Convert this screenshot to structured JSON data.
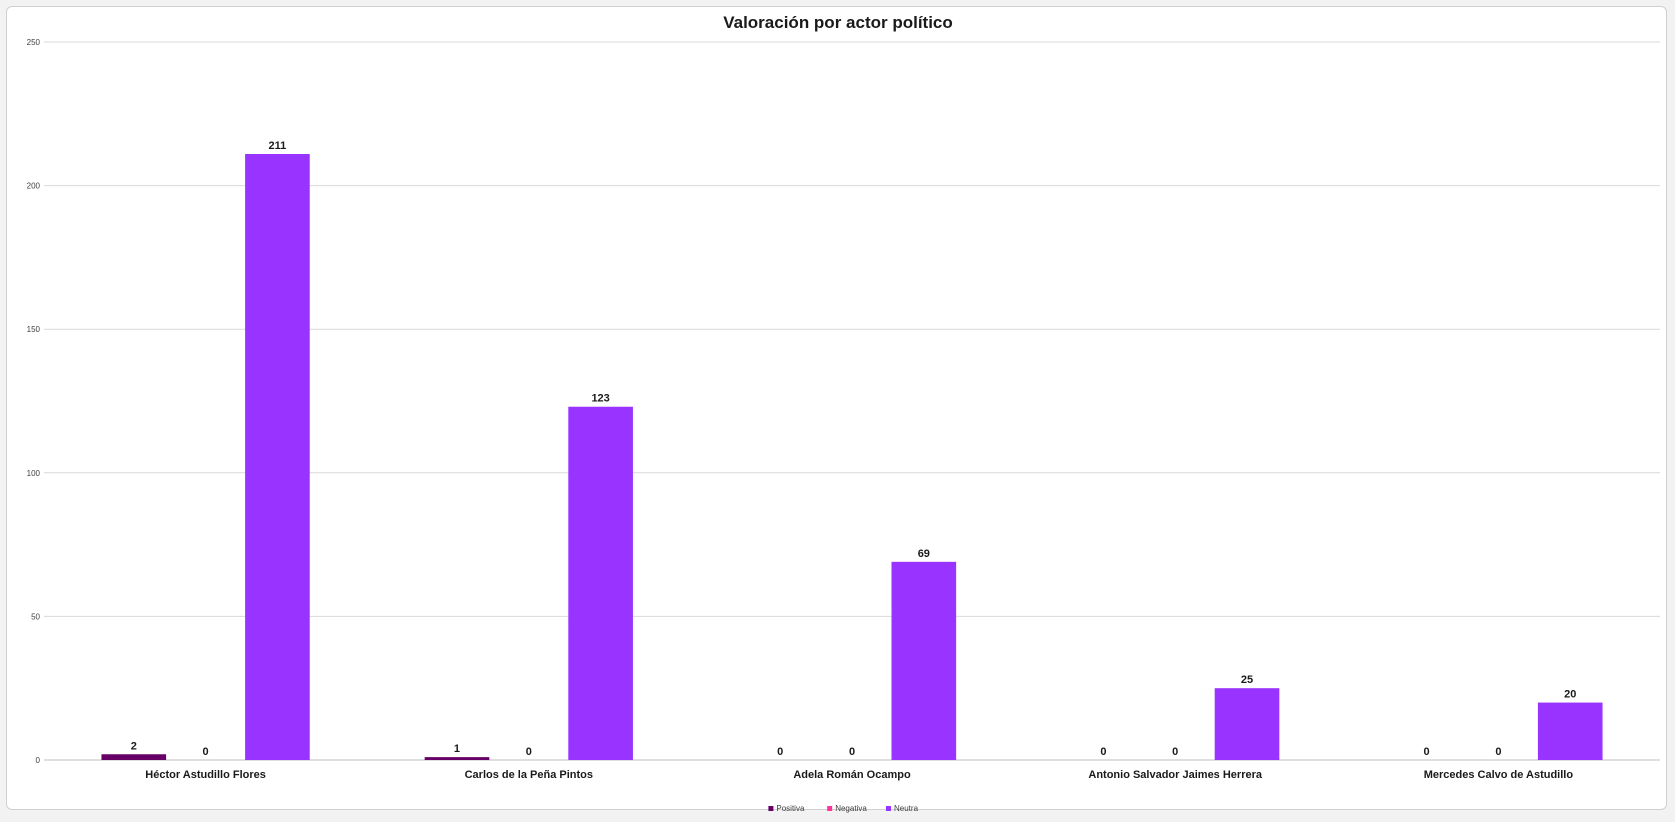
{
  "chart_data": {
    "type": "bar",
    "title": "Valoración por actor político",
    "xlabel": "",
    "ylabel": "",
    "ylim": [
      0,
      250
    ],
    "yticks": [
      "0",
      "50",
      "100",
      "150",
      "200",
      "250"
    ],
    "grid": true,
    "legend_position": "bottom",
    "categories": [
      "Héctor Astudillo Flores",
      "Carlos de la Peña Pintos",
      "Adela  Román Ocampo",
      "Antonio Salvador Jaimes Herrera",
      "Mercedes Calvo de Astudillo"
    ],
    "series": [
      {
        "name": "Positiva",
        "color": "#660066",
        "values": [
          2,
          1,
          0,
          0,
          0
        ]
      },
      {
        "name": "Negativa",
        "color": "#ff3399",
        "values": [
          0,
          0,
          0,
          0,
          0
        ]
      },
      {
        "name": "Neutra",
        "color": "#9933ff",
        "values": [
          211,
          123,
          69,
          25,
          20
        ]
      }
    ]
  }
}
